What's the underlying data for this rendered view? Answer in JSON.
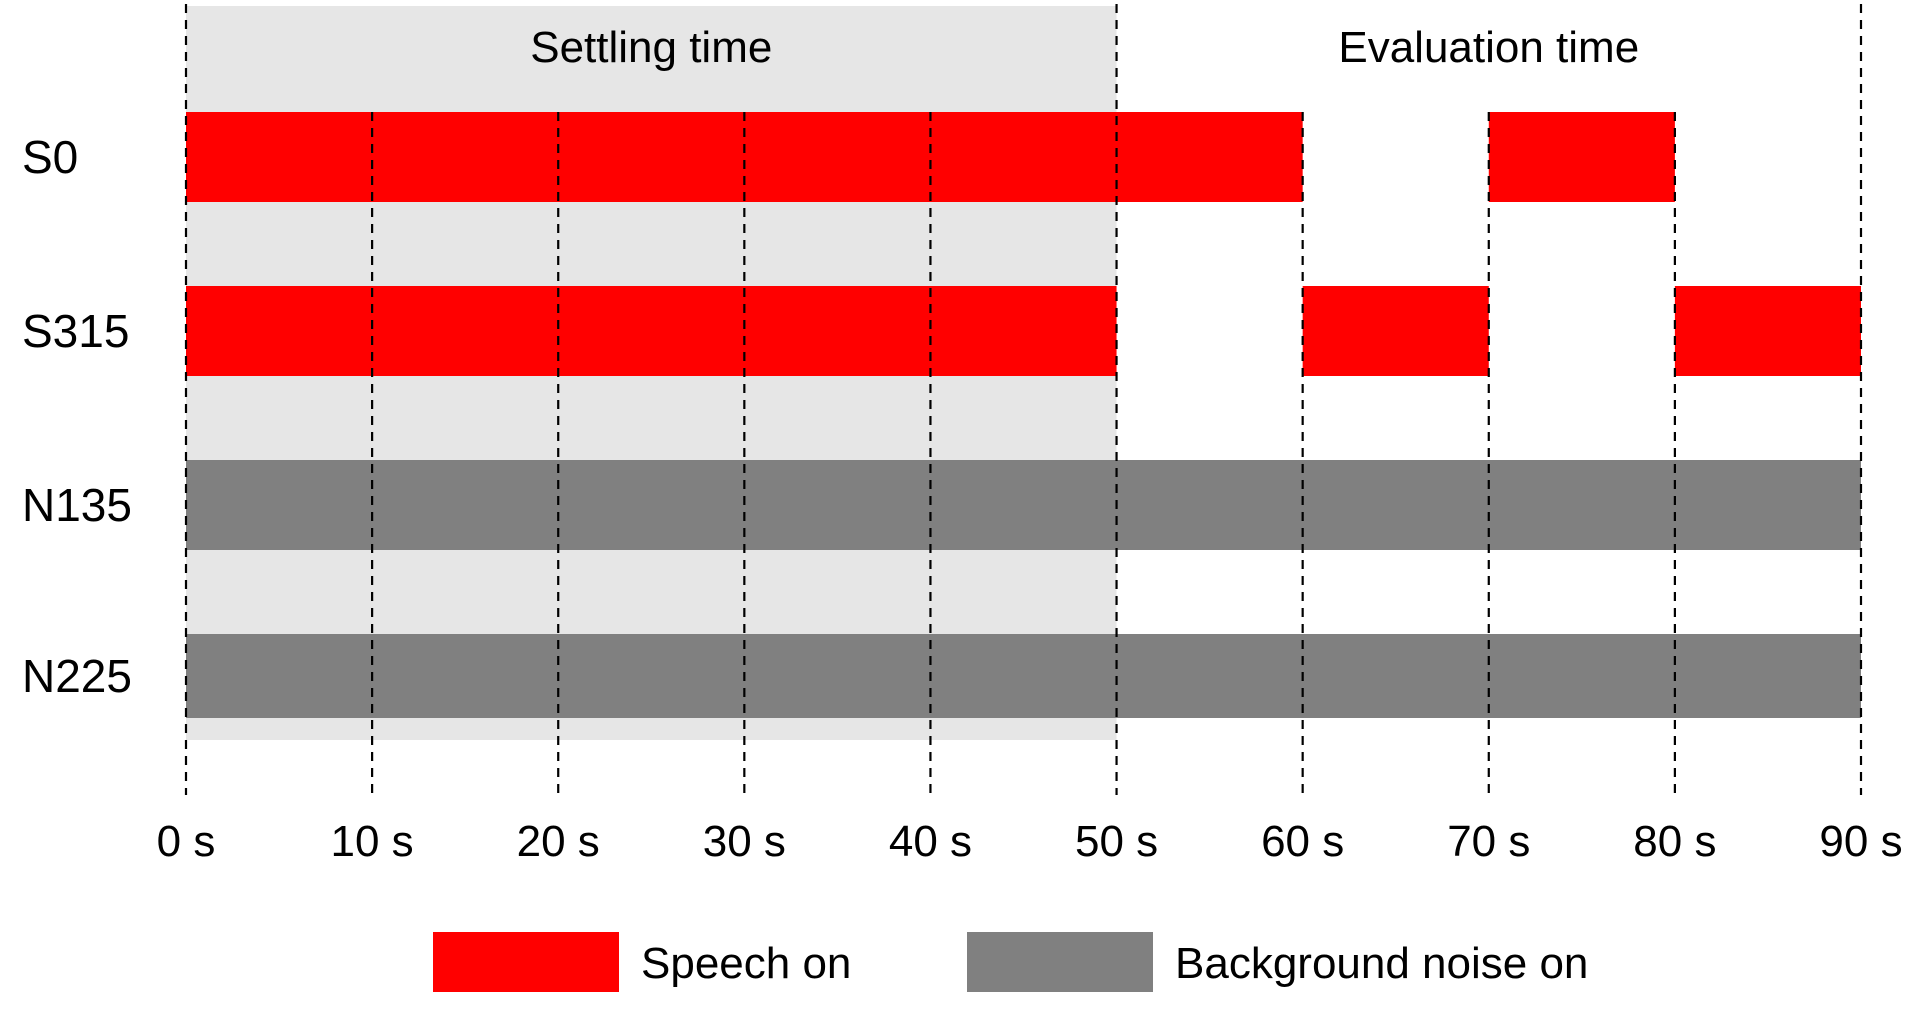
{
  "chart_data": {
    "type": "timeline",
    "x_unit": "s",
    "xlim": [
      0,
      90
    ],
    "x_ticks": [
      0,
      10,
      20,
      30,
      40,
      50,
      60,
      70,
      80,
      90
    ],
    "x_tick_labels": [
      "0 s",
      "10 s",
      "20 s",
      "30 s",
      "40 s",
      "50 s",
      "60 s",
      "70 s",
      "80 s",
      "90 s"
    ],
    "phases": [
      {
        "label": "Settling time",
        "start": 0,
        "end": 50,
        "color": "#e6e6e6"
      },
      {
        "label": "Evaluation time",
        "start": 50,
        "end": 90,
        "color": "#ffffff"
      }
    ],
    "rows": [
      {
        "label": "S0",
        "type": "speech",
        "intervals": [
          [
            0,
            60
          ],
          [
            70,
            80
          ]
        ]
      },
      {
        "label": "S315",
        "type": "speech",
        "intervals": [
          [
            0,
            50
          ],
          [
            60,
            70
          ],
          [
            80,
            90
          ]
        ]
      },
      {
        "label": "N135",
        "type": "noise",
        "intervals": [
          [
            0,
            90
          ]
        ]
      },
      {
        "label": "N225",
        "type": "noise",
        "intervals": [
          [
            0,
            90
          ]
        ]
      }
    ],
    "legend": [
      {
        "key": "speech",
        "label": "Speech on",
        "color": "#ff0000"
      },
      {
        "key": "noise",
        "label": "Background noise on",
        "color": "#808080"
      }
    ],
    "grid": "dashed-vertical"
  }
}
